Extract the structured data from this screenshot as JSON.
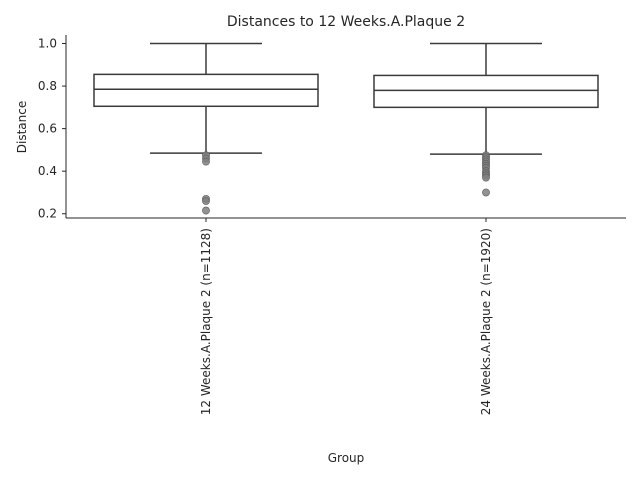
{
  "chart_data": {
    "type": "box",
    "title": "Distances to 12 Weeks.A.Plaque 2",
    "xlabel": "Group",
    "ylabel": "Distance",
    "ylim": [
      0.18,
      1.04
    ],
    "yticks": [
      0.2,
      0.4,
      0.6,
      0.8,
      1.0
    ],
    "ytick_labels": [
      "0.2",
      "0.4",
      "0.6",
      "0.8",
      "1.0"
    ],
    "grid": false,
    "colors": {
      "box": "#3a3a3a",
      "outlier": "#7f7f7f",
      "axis": "#262626"
    },
    "groups": [
      {
        "label": "12 Weeks.A.Plaque 2 (n=1128)",
        "whisker_low": 0.485,
        "q1": 0.705,
        "median": 0.785,
        "q3": 0.855,
        "whisker_high": 1.0,
        "outliers": [
          0.475,
          0.46,
          0.445,
          0.27,
          0.26,
          0.215
        ]
      },
      {
        "label": "24 Weeks.A.Plaque 2 (n=1920)",
        "whisker_low": 0.48,
        "q1": 0.7,
        "median": 0.78,
        "q3": 0.85,
        "whisker_high": 1.0,
        "outliers": [
          0.475,
          0.465,
          0.455,
          0.445,
          0.435,
          0.425,
          0.415,
          0.4,
          0.39,
          0.38,
          0.37,
          0.3
        ]
      }
    ]
  }
}
